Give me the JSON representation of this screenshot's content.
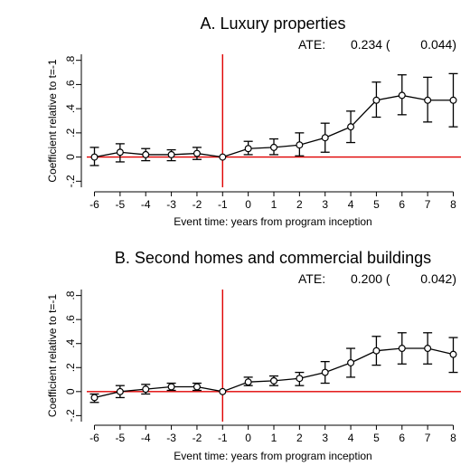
{
  "chart_data": [
    {
      "type": "line",
      "title": "A. Luxury properties",
      "annotation": {
        "label": "ATE:",
        "value": "0.234 (",
        "se": "0.044)"
      },
      "xlabel": "Event time: years from program inception",
      "ylabel": "Coefficient relative to t=-1",
      "x": [
        -6,
        -5,
        -4,
        -3,
        -2,
        -1,
        0,
        1,
        2,
        3,
        4,
        5,
        6,
        7,
        8
      ],
      "xticklabels": [
        "-6",
        "-5",
        "-4",
        "-3",
        "-2",
        "-1",
        "0",
        "1",
        "2",
        "3",
        "4",
        "5",
        "6",
        "7",
        "8"
      ],
      "yticks": [
        -0.2,
        0,
        0.2,
        0.4,
        0.6,
        0.8
      ],
      "yticklabels": [
        "-.2",
        "0",
        ".2",
        ".4",
        ".6",
        ".8"
      ],
      "ylim": [
        -0.25,
        0.85
      ],
      "xlim": [
        -6.3,
        8.3
      ],
      "series": [
        {
          "values": [
            0.0,
            0.04,
            0.02,
            0.02,
            0.03,
            0.0,
            0.07,
            0.08,
            0.1,
            0.16,
            0.25,
            0.47,
            0.51,
            0.47,
            0.47
          ],
          "ci_low": [
            -0.07,
            -0.04,
            -0.03,
            -0.03,
            -0.02,
            0.0,
            0.02,
            0.02,
            0.01,
            0.04,
            0.12,
            0.33,
            0.35,
            0.29,
            0.25
          ],
          "ci_high": [
            0.08,
            0.11,
            0.07,
            0.06,
            0.08,
            0.0,
            0.13,
            0.15,
            0.2,
            0.28,
            0.38,
            0.62,
            0.68,
            0.66,
            0.69
          ]
        }
      ],
      "reference_lines": {
        "vertical_x": -1,
        "horizontal_y": 0,
        "color": "#e00000"
      },
      "grid": false,
      "legend": "none"
    },
    {
      "type": "line",
      "title": "B. Second homes and commercial buildings",
      "annotation": {
        "label": "ATE:",
        "value": "0.200 (",
        "se": "0.042)"
      },
      "xlabel": "Event time: years from program inception",
      "ylabel": "Coefficient relative to t=-1",
      "x": [
        -6,
        -5,
        -4,
        -3,
        -2,
        -1,
        0,
        1,
        2,
        3,
        4,
        5,
        6,
        7,
        8
      ],
      "xticklabels": [
        "-6",
        "-5",
        "-4",
        "-3",
        "-2",
        "-1",
        "0",
        "1",
        "2",
        "3",
        "4",
        "5",
        "6",
        "7",
        "8"
      ],
      "yticks": [
        -0.2,
        0,
        0.2,
        0.4,
        0.6,
        0.8
      ],
      "yticklabels": [
        "-.2",
        "0",
        ".2",
        ".4",
        ".6",
        ".8"
      ],
      "ylim": [
        -0.25,
        0.85
      ],
      "xlim": [
        -6.3,
        8.3
      ],
      "series": [
        {
          "values": [
            -0.05,
            0.0,
            0.02,
            0.04,
            0.04,
            0.0,
            0.08,
            0.09,
            0.11,
            0.16,
            0.24,
            0.34,
            0.36,
            0.36,
            0.31
          ],
          "ci_low": [
            -0.09,
            -0.05,
            -0.02,
            0.01,
            0.01,
            0.0,
            0.05,
            0.05,
            0.05,
            0.07,
            0.12,
            0.22,
            0.23,
            0.23,
            0.16
          ],
          "ci_high": [
            -0.02,
            0.05,
            0.06,
            0.07,
            0.07,
            0.0,
            0.12,
            0.13,
            0.16,
            0.25,
            0.36,
            0.46,
            0.49,
            0.49,
            0.45
          ]
        }
      ],
      "reference_lines": {
        "vertical_x": -1,
        "horizontal_y": 0,
        "color": "#e00000"
      },
      "grid": false,
      "legend": "none"
    }
  ]
}
